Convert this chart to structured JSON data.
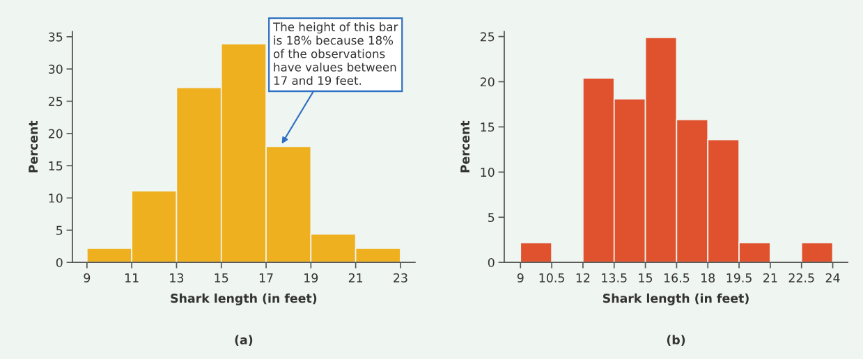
{
  "chart_data": [
    {
      "type": "histogram",
      "bins": [
        9,
        11,
        13,
        15,
        17,
        19,
        21,
        23
      ],
      "values": [
        2.2,
        11.1,
        27.1,
        33.9,
        18,
        4.4,
        2.2
      ],
      "color": "#efb01f",
      "xlabel": "Shark length (in feet)",
      "ylabel": "Percent",
      "xlim": [
        8.35,
        23.65
      ],
      "ylim": [
        0,
        35.8
      ],
      "xticks": [
        9,
        11,
        13,
        15,
        17,
        19,
        21,
        23
      ],
      "yticks": [
        0,
        5,
        10,
        15,
        20,
        25,
        30,
        35
      ],
      "grid": false,
      "annotations": [
        {
          "text": "The height of this bar\nis 18% because 18%\nof the observations\nhave values between\n17 and 19 feet.",
          "x": 17.7,
          "y": 18.4
        },
        "(a)"
      ]
    },
    {
      "type": "histogram",
      "bins": [
        9,
        10.5,
        12,
        13.5,
        15,
        16.5,
        18,
        19.5,
        21,
        22.5,
        24
      ],
      "values": [
        2.2,
        0,
        20.4,
        18.1,
        24.9,
        15.8,
        13.6,
        2.2,
        0,
        2.2
      ],
      "color": "#e0522e",
      "xlabel": "Shark length (in feet)",
      "ylabel": "Percent",
      "xlim": [
        8.22,
        24.72
      ],
      "ylim": [
        0,
        25.55
      ],
      "xticks": [
        9,
        10.5,
        12,
        13.5,
        15,
        16.5,
        18,
        19.5,
        21,
        22.5,
        24
      ],
      "yticks": [
        0,
        5,
        10,
        15,
        20,
        25
      ],
      "grid": false,
      "annotations": [
        "(b)"
      ]
    }
  ]
}
